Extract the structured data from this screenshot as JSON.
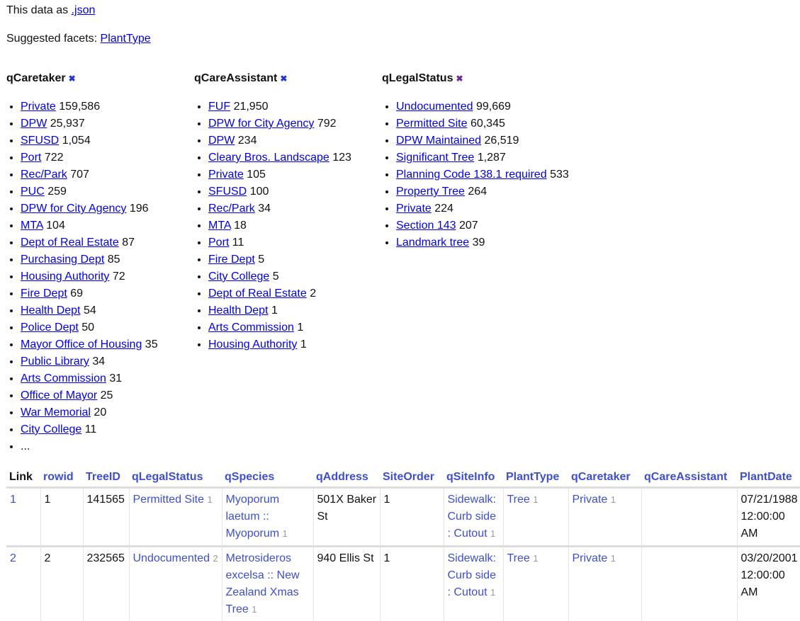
{
  "intro": {
    "prefix": "This data as ",
    "json_link": ".json",
    "suggested_label": "Suggested facets: ",
    "suggested": [
      "PlantType"
    ]
  },
  "facets": [
    {
      "name": "qCaretaker",
      "remove_icon": "x-icon",
      "remove_color": "#2233dd",
      "items": [
        {
          "label": "Private",
          "count": "159,586"
        },
        {
          "label": "DPW",
          "count": "25,937"
        },
        {
          "label": "SFUSD",
          "count": "1,054"
        },
        {
          "label": "Port",
          "count": "722"
        },
        {
          "label": "Rec/Park",
          "count": "707"
        },
        {
          "label": "PUC",
          "count": "259"
        },
        {
          "label": "DPW for City Agency",
          "count": "196"
        },
        {
          "label": "MTA",
          "count": "104"
        },
        {
          "label": "Dept of Real Estate",
          "count": "87"
        },
        {
          "label": "Purchasing Dept",
          "count": "85"
        },
        {
          "label": "Housing Authority",
          "count": "72"
        },
        {
          "label": "Fire Dept",
          "count": "69"
        },
        {
          "label": "Health Dept",
          "count": "54"
        },
        {
          "label": "Police Dept",
          "count": "50"
        },
        {
          "label": "Mayor Office of Housing",
          "count": "35"
        },
        {
          "label": "Public Library",
          "count": "34"
        },
        {
          "label": "Arts Commission",
          "count": "31"
        },
        {
          "label": "Office of Mayor",
          "count": "25"
        },
        {
          "label": "War Memorial",
          "count": "20"
        },
        {
          "label": "City College",
          "count": "11"
        }
      ],
      "more": "..."
    },
    {
      "name": "qCareAssistant",
      "remove_icon": "x-icon",
      "remove_color": "#2233dd",
      "items": [
        {
          "label": "FUF",
          "count": "21,950"
        },
        {
          "label": "DPW for City Agency",
          "count": "792"
        },
        {
          "label": "DPW",
          "count": "234"
        },
        {
          "label": "Cleary Bros. Landscape",
          "count": "123"
        },
        {
          "label": "Private",
          "count": "105"
        },
        {
          "label": "SFUSD",
          "count": "100"
        },
        {
          "label": "Rec/Park",
          "count": "34"
        },
        {
          "label": "MTA",
          "count": "18"
        },
        {
          "label": "Port",
          "count": "11"
        },
        {
          "label": "Fire Dept",
          "count": "5"
        },
        {
          "label": "City College",
          "count": "5"
        },
        {
          "label": "Dept of Real Estate",
          "count": "2"
        },
        {
          "label": "Health Dept",
          "count": "1"
        },
        {
          "label": "Arts Commission",
          "count": "1"
        },
        {
          "label": "Housing Authority",
          "count": "1"
        }
      ]
    },
    {
      "name": "qLegalStatus",
      "remove_icon": "x-icon",
      "remove_color": "#6a2a9a",
      "items": [
        {
          "label": "Undocumented",
          "count": "99,669"
        },
        {
          "label": "Permitted Site",
          "count": "60,345"
        },
        {
          "label": "DPW Maintained",
          "count": "26,519"
        },
        {
          "label": "Significant Tree",
          "count": "1,287"
        },
        {
          "label": "Planning Code 138.1 required",
          "count": "533"
        },
        {
          "label": "Property Tree",
          "count": "264"
        },
        {
          "label": "Private",
          "count": "224"
        },
        {
          "label": "Section 143",
          "count": "207"
        },
        {
          "label": "Landmark tree",
          "count": "39"
        }
      ]
    }
  ],
  "table": {
    "columns": [
      "Link",
      "rowid",
      "TreeID",
      "qLegalStatus",
      "qSpecies",
      "qAddress",
      "SiteOrder",
      "qSiteInfo",
      "PlantType",
      "qCaretaker",
      "qCareAssistant",
      "PlantDate"
    ],
    "rows": [
      {
        "link": "1",
        "rowid": "1",
        "treeid": "141565",
        "legal": {
          "v": "Permitted Site",
          "c": "1"
        },
        "species": {
          "v": "Myoporum laetum :: Myoporum",
          "c": "1"
        },
        "address": "501X Baker St",
        "siteorder": "1",
        "siteinfo": {
          "v": "Sidewalk: Curb side : Cutout",
          "c": "1"
        },
        "planttype": {
          "v": "Tree",
          "c": "1"
        },
        "caretaker": {
          "v": "Private",
          "c": "1"
        },
        "careassistant": "",
        "plantdate": "07/21/1988 12:00:00 AM"
      },
      {
        "link": "2",
        "rowid": "2",
        "treeid": "232565",
        "legal": {
          "v": "Undocumented",
          "c": "2"
        },
        "species": {
          "v": "Metrosideros excelsa :: New Zealand Xmas Tree",
          "c": "1"
        },
        "address": "940 Ellis St",
        "siteorder": "1",
        "siteinfo": {
          "v": "Sidewalk: Curb side : Cutout",
          "c": "1"
        },
        "planttype": {
          "v": "Tree",
          "c": "1"
        },
        "caretaker": {
          "v": "Private",
          "c": "1"
        },
        "careassistant": "",
        "plantdate": "03/20/2001 12:00:00 AM"
      }
    ]
  }
}
